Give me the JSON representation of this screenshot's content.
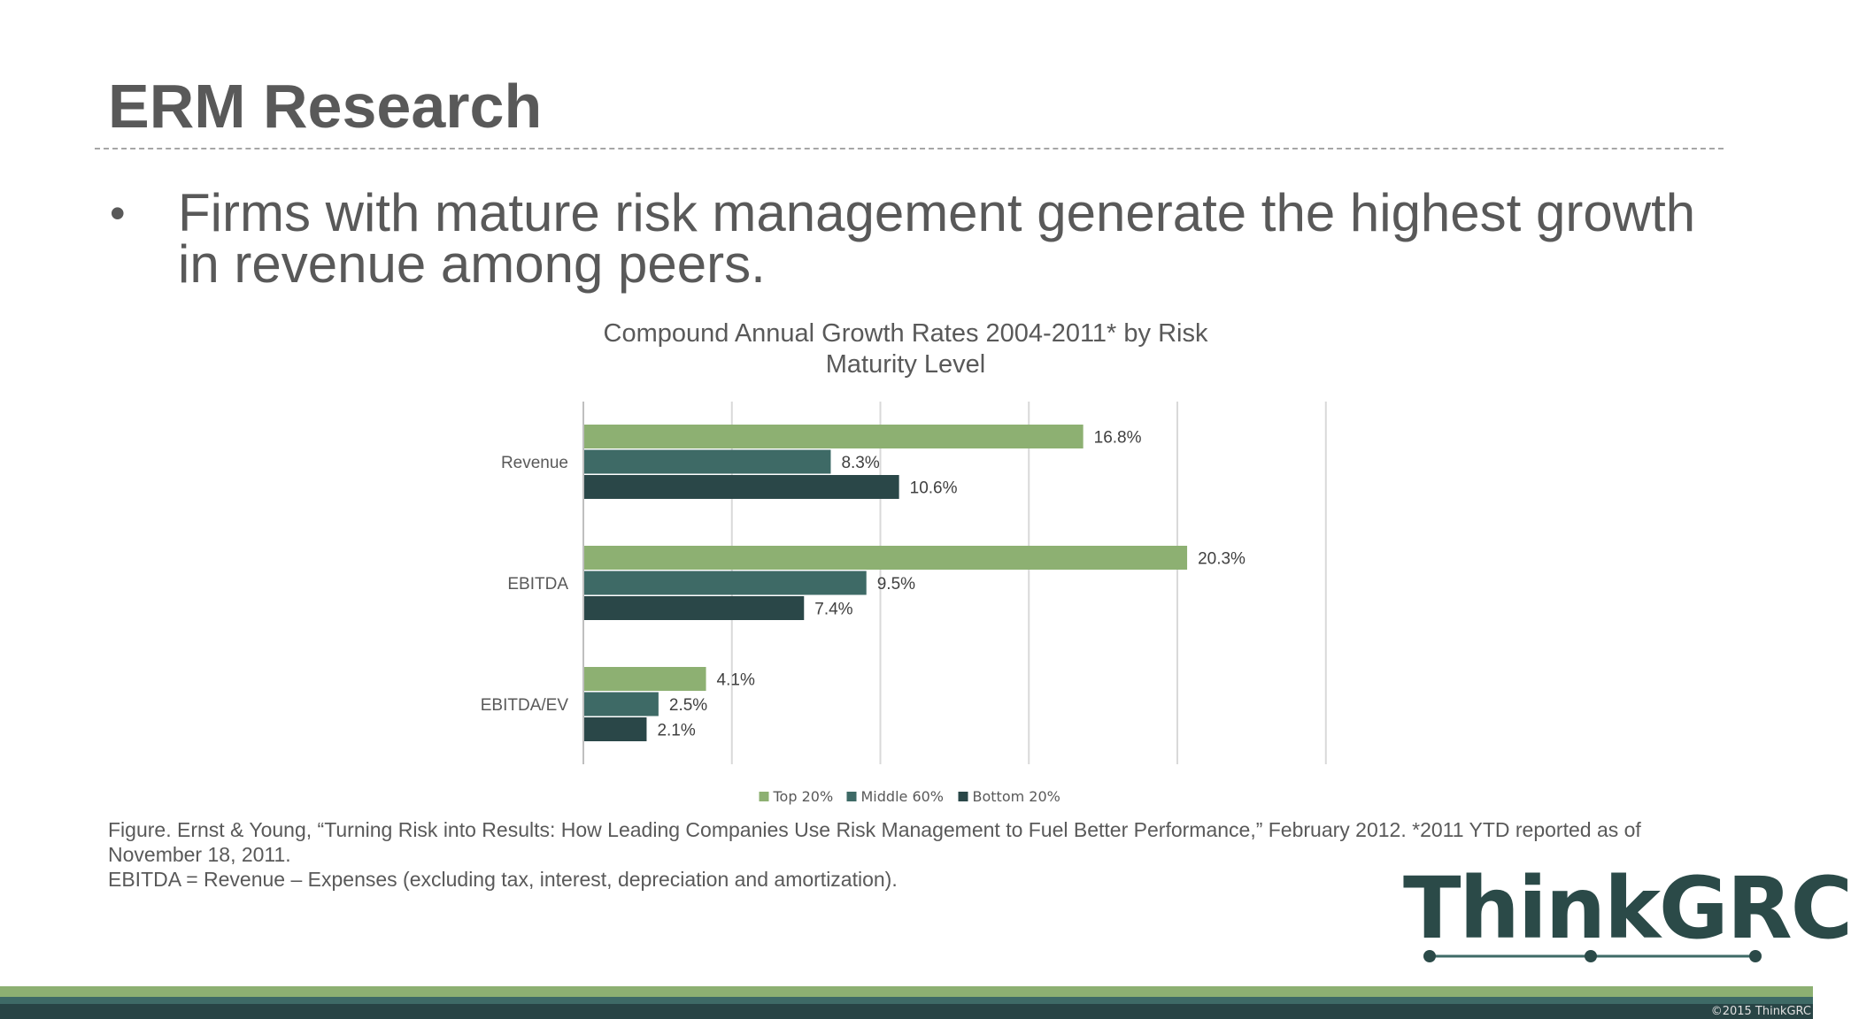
{
  "slide": {
    "title": "ERM Research",
    "bullet_symbol": "•",
    "bullet_text": "Firms with mature risk management generate the highest growth in revenue among peers."
  },
  "chart_data": {
    "type": "bar",
    "orientation": "horizontal",
    "title_lines": [
      "Compound Annual Growth Rates 2004-2011* by Risk",
      "Maturity Level"
    ],
    "categories": [
      "Revenue",
      "EBITDA",
      "EBITDA/EV"
    ],
    "series": [
      {
        "name": "Top 20%",
        "values": [
          16.8,
          20.3,
          4.1
        ],
        "labels": [
          "16.8%",
          "20.3%",
          "4.1%"
        ],
        "color": "#8db072"
      },
      {
        "name": "Middle 60%",
        "values": [
          8.3,
          9.5,
          2.5
        ],
        "labels": [
          "8.3%",
          "9.5%",
          "2.5%"
        ],
        "color": "#3e6a66"
      },
      {
        "name": "Bottom 20%",
        "values": [
          10.6,
          7.4,
          2.1
        ],
        "labels": [
          "10.6%",
          "7.4%",
          "2.1%"
        ],
        "color": "#2a4748"
      }
    ],
    "xlim": [
      0,
      25
    ],
    "grid_step": 5,
    "grid": true,
    "tick_labels_shown": false,
    "legend_position": "bottom"
  },
  "caption": {
    "line1": "Figure. Ernst & Young, “Turning Risk into Results: How Leading Companies Use Risk Management to Fuel Better Performance,” February 2012.  *2011 YTD reported as of November 18, 2011.",
    "line2": "EBITDA = Revenue – Expenses (excluding tax, interest, depreciation and amortization)."
  },
  "logo": {
    "text": "ThinkGRC",
    "color": "#2b4a48"
  },
  "footer": {
    "copyright": "©2015 ThinkGRC"
  },
  "colors": {
    "text": "#595959",
    "band_light": "#8db072",
    "band_mid": "#3e6a66",
    "band_dark": "#284445"
  }
}
